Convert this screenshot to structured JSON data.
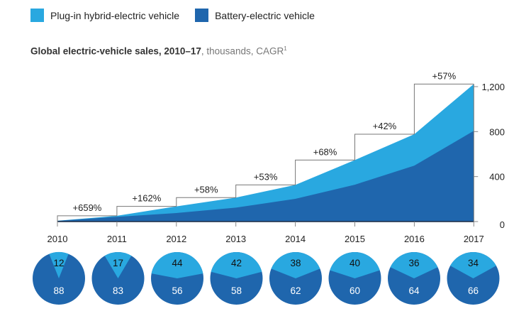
{
  "legend": [
    {
      "label": "Plug-in hybrid-electric vehicle",
      "color": "#29a8e0"
    },
    {
      "label": "Battery-electric vehicle",
      "color": "#1f66ad"
    }
  ],
  "title": {
    "bold": "Global electric-vehicle sales, 2010–17",
    "rest": ", thousands, CAGR",
    "footnote": "1"
  },
  "chart_data": {
    "type": "area",
    "stacked": true,
    "categories": [
      "2010",
      "2011",
      "2012",
      "2013",
      "2014",
      "2015",
      "2016",
      "2017"
    ],
    "totals": [
      7,
      51,
      135,
      213,
      326,
      547,
      777,
      1223
    ],
    "series": [
      {
        "name": "Battery-electric vehicle",
        "values": [
          6,
          42,
          76,
          124,
          202,
          328,
          497,
          807
        ],
        "share_pct": [
          88,
          83,
          56,
          58,
          62,
          60,
          64,
          66
        ]
      },
      {
        "name": "Plug-in hybrid-electric vehicle",
        "values": [
          1,
          9,
          59,
          89,
          124,
          219,
          280,
          416
        ],
        "share_pct": [
          12,
          17,
          44,
          42,
          38,
          40,
          36,
          34
        ]
      }
    ],
    "growth_labels": [
      "+659%",
      "+162%",
      "+58%",
      "+53%",
      "+68%",
      "+42%",
      "+57%"
    ],
    "y_ticks": [
      "0",
      "400",
      "800",
      "1,200"
    ],
    "y_tick_values": [
      0,
      400,
      800,
      1200
    ],
    "ylim": [
      0,
      1200
    ],
    "y_axis_side": "right",
    "grid": false
  }
}
